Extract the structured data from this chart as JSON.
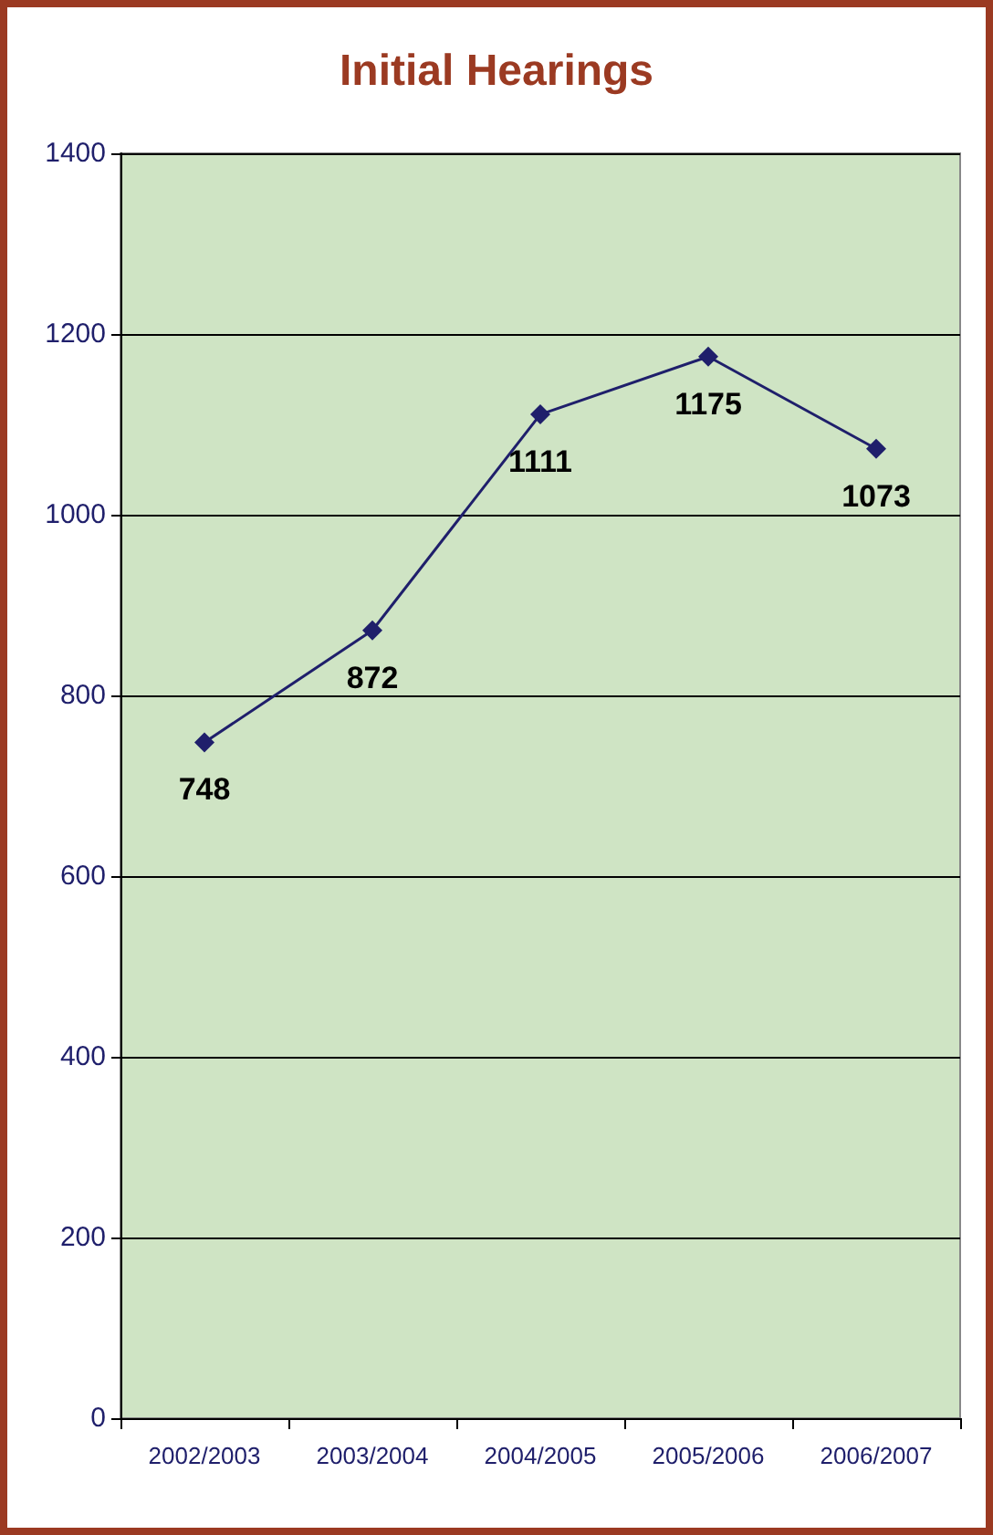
{
  "chart_data": {
    "type": "line",
    "title": "Initial Hearings",
    "categories": [
      "2002/2003",
      "2003/2004",
      "2004/2005",
      "2005/2006",
      "2006/2007"
    ],
    "series": [
      {
        "color": "#1f1f6b",
        "values": [
          748,
          872,
          1111,
          1175,
          1073
        ]
      }
    ],
    "ylim": [
      0,
      1400
    ],
    "yticks": [
      0,
      200,
      400,
      600,
      800,
      1000,
      1200,
      1400
    ],
    "grid": "y",
    "marker": "diamond",
    "line_style": "solid",
    "data_labels": true
  }
}
